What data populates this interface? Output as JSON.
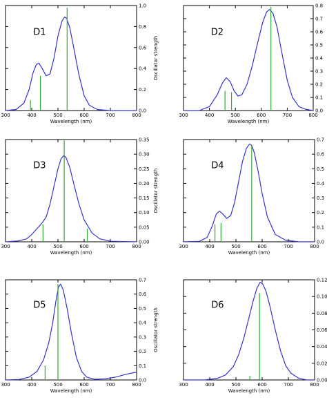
{
  "colors": {
    "curve": "#3333cc",
    "stick": "#33aa33",
    "axis": "#000000"
  },
  "chart_data": [
    {
      "type": "line",
      "panel_label": "D1",
      "xlabel": "Wavelength (nm)",
      "ylabel": "Oscillator strength",
      "xlim": [
        300,
        800
      ],
      "ylim": [
        0,
        1.0
      ],
      "xticks": [
        "300",
        "400",
        "500",
        "600",
        "700",
        "800"
      ],
      "yticks": [
        "0.0",
        "0.2",
        "0.4",
        "0.6",
        "0.8",
        "1.0"
      ],
      "curve_x": [
        300,
        340,
        370,
        390,
        405,
        418,
        428,
        440,
        455,
        470,
        485,
        500,
        515,
        525,
        533,
        545,
        560,
        580,
        600,
        620,
        650,
        700,
        800
      ],
      "curve_y": [
        0.0,
        0.01,
        0.07,
        0.2,
        0.36,
        0.44,
        0.45,
        0.4,
        0.33,
        0.35,
        0.5,
        0.71,
        0.85,
        0.89,
        0.88,
        0.79,
        0.6,
        0.34,
        0.14,
        0.05,
        0.01,
        0.0,
        0.0
      ],
      "sticks": [
        {
          "x": 395,
          "y": 0.1
        },
        {
          "x": 433,
          "y": 0.33
        },
        {
          "x": 535,
          "y": 0.98
        }
      ]
    },
    {
      "type": "line",
      "panel_label": "D2",
      "xlabel": "Wavelength (nm)",
      "ylabel": "Oscillator strength",
      "xlim": [
        300,
        800
      ],
      "ylim": [
        0,
        0.8
      ],
      "xticks": [
        "300",
        "400",
        "500",
        "600",
        "700",
        "800"
      ],
      "yticks": [
        "0.0",
        "0.1",
        "0.2",
        "0.3",
        "0.4",
        "0.5",
        "0.6",
        "0.7",
        "0.8"
      ],
      "curve_x": [
        300,
        360,
        400,
        430,
        450,
        465,
        480,
        495,
        510,
        525,
        545,
        565,
        585,
        605,
        620,
        632,
        645,
        660,
        680,
        700,
        720,
        745,
        770,
        800
      ],
      "curve_y": [
        0.0,
        0.0,
        0.03,
        0.12,
        0.21,
        0.25,
        0.22,
        0.15,
        0.11,
        0.12,
        0.2,
        0.34,
        0.51,
        0.67,
        0.75,
        0.77,
        0.74,
        0.64,
        0.43,
        0.23,
        0.1,
        0.03,
        0.01,
        0.0
      ],
      "sticks": [
        {
          "x": 460,
          "y": 0.15
        },
        {
          "x": 485,
          "y": 0.14
        },
        {
          "x": 637,
          "y": 0.79
        }
      ]
    },
    {
      "type": "line",
      "panel_label": "D3",
      "xlabel": "Wavelength (nm)",
      "ylabel": "Oscillator strength",
      "xlim": [
        300,
        800
      ],
      "ylim": [
        0,
        0.35
      ],
      "xticks": [
        "300",
        "400",
        "500",
        "600",
        "700",
        "800"
      ],
      "yticks": [
        "0.00",
        "0.05",
        "0.10",
        "0.15",
        "0.20",
        "0.25",
        "0.30",
        "0.35"
      ],
      "curve_x": [
        300,
        350,
        380,
        400,
        420,
        440,
        455,
        470,
        485,
        500,
        512,
        522,
        530,
        545,
        560,
        580,
        600,
        630,
        660,
        700,
        800
      ],
      "curve_y": [
        0.0,
        0.003,
        0.01,
        0.025,
        0.045,
        0.065,
        0.085,
        0.13,
        0.19,
        0.25,
        0.285,
        0.295,
        0.29,
        0.255,
        0.2,
        0.13,
        0.075,
        0.03,
        0.01,
        0.002,
        0.0
      ],
      "sticks": [
        {
          "x": 443,
          "y": 0.06
        },
        {
          "x": 524,
          "y": 0.35
        },
        {
          "x": 612,
          "y": 0.045
        }
      ]
    },
    {
      "type": "line",
      "panel_label": "D4",
      "xlabel": "Wavelength (nm)",
      "ylabel": "Oscillator strength",
      "xlim": [
        300,
        800
      ],
      "ylim": [
        0,
        0.7
      ],
      "xticks": [
        "300",
        "400",
        "500",
        "600",
        "700",
        "800"
      ],
      "yticks": [
        "0.0",
        "0.1",
        "0.2",
        "0.3",
        "0.4",
        "0.5",
        "0.6",
        "0.7"
      ],
      "curve_x": [
        300,
        360,
        390,
        410,
        425,
        437,
        450,
        465,
        480,
        495,
        510,
        525,
        540,
        552,
        560,
        570,
        585,
        600,
        620,
        650,
        690,
        740,
        800
      ],
      "curve_y": [
        0.0,
        0.003,
        0.03,
        0.11,
        0.19,
        0.21,
        0.19,
        0.16,
        0.18,
        0.27,
        0.41,
        0.55,
        0.64,
        0.67,
        0.66,
        0.61,
        0.48,
        0.33,
        0.17,
        0.05,
        0.01,
        0.0,
        0.0
      ],
      "sticks": [
        {
          "x": 420,
          "y": 0.12
        },
        {
          "x": 443,
          "y": 0.13
        },
        {
          "x": 560,
          "y": 0.66
        }
      ]
    },
    {
      "type": "line",
      "panel_label": "D5",
      "xlabel": "Wavelength (nm)",
      "ylabel": "Oscillator strength",
      "xlim": [
        300,
        800
      ],
      "ylim": [
        0,
        0.7
      ],
      "xticks": [
        "300",
        "400",
        "500",
        "600",
        "700",
        "800"
      ],
      "yticks": [
        "0.0",
        "0.1",
        "0.2",
        "0.3",
        "0.4",
        "0.5",
        "0.6",
        "0.7"
      ],
      "curve_x": [
        300,
        350,
        390,
        420,
        445,
        465,
        480,
        492,
        502,
        510,
        520,
        535,
        550,
        570,
        590,
        610,
        640,
        680,
        720,
        760,
        800
      ],
      "curve_y": [
        0.0,
        0.003,
        0.02,
        0.06,
        0.14,
        0.26,
        0.4,
        0.55,
        0.65,
        0.67,
        0.63,
        0.5,
        0.34,
        0.16,
        0.06,
        0.02,
        0.005,
        0.008,
        0.02,
        0.04,
        0.055
      ],
      "sticks": [
        {
          "x": 451,
          "y": 0.1
        },
        {
          "x": 500,
          "y": 0.67
        }
      ]
    },
    {
      "type": "line",
      "panel_label": "D6",
      "xlabel": "Wavelength (nm)",
      "ylabel": "Oscillator strength",
      "xlim": [
        300,
        800
      ],
      "ylim": [
        0,
        0.12
      ],
      "xticks": [
        "300",
        "400",
        "500",
        "600",
        "700",
        "800"
      ],
      "yticks": [
        "0.00",
        "0.02",
        "0.04",
        "0.06",
        "0.08",
        "0.10",
        "0.12"
      ],
      "curve_x": [
        300,
        380,
        430,
        460,
        490,
        510,
        530,
        550,
        565,
        580,
        592,
        602,
        615,
        630,
        650,
        670,
        690,
        710,
        740,
        770,
        800
      ],
      "curve_y": [
        0.0,
        0.0,
        0.002,
        0.006,
        0.016,
        0.03,
        0.05,
        0.075,
        0.094,
        0.11,
        0.117,
        0.115,
        0.106,
        0.088,
        0.06,
        0.035,
        0.017,
        0.008,
        0.002,
        0.0,
        0.0
      ],
      "sticks": [
        {
          "x": 553,
          "y": 0.005
        },
        {
          "x": 590,
          "y": 0.104
        }
      ]
    }
  ]
}
